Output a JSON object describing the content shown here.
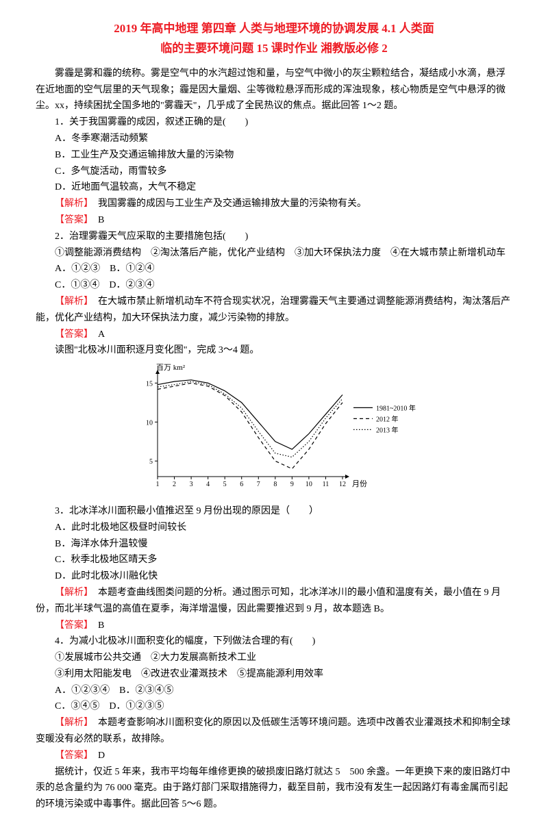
{
  "title": {
    "line1": "2019 年高中地理 第四章 人类与地理环境的协调发展 4.1 人类面",
    "line2": "临的主要环境问题 15 课时作业 湘教版必修 2"
  },
  "intro": "雾霾是雾和霾的统称。雾是空气中的水汽超过饱和量，与空气中微小的灰尘颗粒结合，凝结成小水滴，悬浮在近地面的空气层里的天气现象；霾是因大量烟、尘等微粒悬浮而形成的浑浊现象，核心物质是空气中悬浮的微尘。xx，持续困扰全国多地的\"雾霾天\"，几乎成了全民热议的焦点。据此回答 1～2 题。",
  "q1": {
    "stem": "1．关于我国雾霾的成因，叙述正确的是(　　)",
    "a": "A．冬季寒潮活动频繁",
    "b": "B．工业生产及交通运输排放大量的污染物",
    "c": "C．多气旋活动，雨雪较多",
    "d": "D．近地面气温较高，大气不稳定",
    "explain_label": "【解析】",
    "explain": "　我国雾霾的成因与工业生产及交通运输排放大量的污染物有关。",
    "answer_label": "【答案】",
    "answer": "　B"
  },
  "q2": {
    "stem": "2．治理雾霾天气应采取的主要措施包括(　　)",
    "opts_line": "①调整能源消费结构　②淘汰落后产能，优化产业结构　③加大环保执法力度　④在大城市禁止新增机动车",
    "a": "A．①②③　B．①②④",
    "c": "C．①③④　D．②③④",
    "explain_label": "【解析】",
    "explain": "　在大城市禁止新增机动车不符合现实状况，治理雾霾天气主要通过调整能源消费结构，淘汰落后产能，优化产业结构，加大环保执法力度，减少污染物的排放。",
    "answer_label": "【答案】",
    "answer": "　A"
  },
  "chart_intro": "读图\"北极冰川面积逐月变化图\"，完成 3～4 题。",
  "chart": {
    "ylabel": "百万 km²",
    "xlabel": "月份",
    "xticks": [
      1,
      2,
      3,
      4,
      5,
      6,
      7,
      8,
      9,
      10,
      11,
      12
    ],
    "yticks": [
      5,
      10,
      15
    ],
    "xlim": [
      1,
      12
    ],
    "ylim": [
      3,
      16
    ],
    "background_color": "#ffffff",
    "grid": false,
    "axis_color": "#000000",
    "fontsize": 10,
    "series": [
      {
        "name": "1981~2010 年",
        "style": "solid",
        "color": "#000000",
        "width": 1.2,
        "values": [
          14.8,
          15.2,
          15.4,
          15.0,
          14.0,
          12.5,
          10.0,
          7.5,
          6.5,
          8.5,
          11.0,
          13.5
        ]
      },
      {
        "name": "2012 年",
        "style": "dashed",
        "color": "#000000",
        "width": 1.2,
        "values": [
          14.2,
          14.6,
          15.0,
          14.6,
          13.4,
          11.3,
          8.0,
          5.0,
          4.0,
          6.5,
          9.8,
          12.5
        ]
      },
      {
        "name": "2013 年",
        "style": "dotted",
        "color": "#000000",
        "width": 1.2,
        "values": [
          14.5,
          14.8,
          15.2,
          14.8,
          13.6,
          11.8,
          8.8,
          6.0,
          5.5,
          7.5,
          10.5,
          13.0
        ]
      }
    ],
    "legend_pos": "right"
  },
  "q3": {
    "stem": "3．北冰洋冰川面积最小值推迟至 9 月份出现的原因是（　　）",
    "a": "A．此时北极地区极昼时间较长",
    "b": "B．海洋水体升温较慢",
    "c": "C．秋季北极地区晴天多",
    "d": "D．此时北极冰川融化快",
    "explain_label": "【解析】",
    "explain": "　本题考查曲线图类问题的分析。通过图示可知，北冰洋冰川的最小值和温度有关，最小值在 9 月份，而北半球气温的高值在夏季，海洋增温慢，因此需要推迟到 9 月，故本题选 B。",
    "answer_label": "【答案】",
    "answer": "　B"
  },
  "q4": {
    "stem": "4．为减小北极冰川面积变化的幅度，下列做法合理的有(　　)",
    "opts_line": "①发展城市公共交通　②大力发展高新技术工业",
    "opts_line2": "③利用太阳能发电　④改进农业灌溉技术　⑤提高能源利用效率",
    "a": "A．①②③④　B．②③④⑤",
    "c": "C．③④⑤　D．①②③⑤",
    "explain_label": "【解析】",
    "explain": "　本题考查影响冰川面积变化的原因以及低碳生活等环境问题。选项中改善农业灌溉技术和抑制全球变暖没有必然的联系，故排除。",
    "answer_label": "【答案】",
    "answer": "　D"
  },
  "outro": "据统计，仅近 5 年来，我市平均每年维修更换的破损废旧路灯就达 5　500 余盏。一年更换下来的废旧路灯中汞的总含量约为 76 000 毫克。由于路灯部门采取措施得力，截至目前，我市没有发生一起因路灯有毒金属而引起的环境污染或中毒事件。据此回答 5～6 题。"
}
